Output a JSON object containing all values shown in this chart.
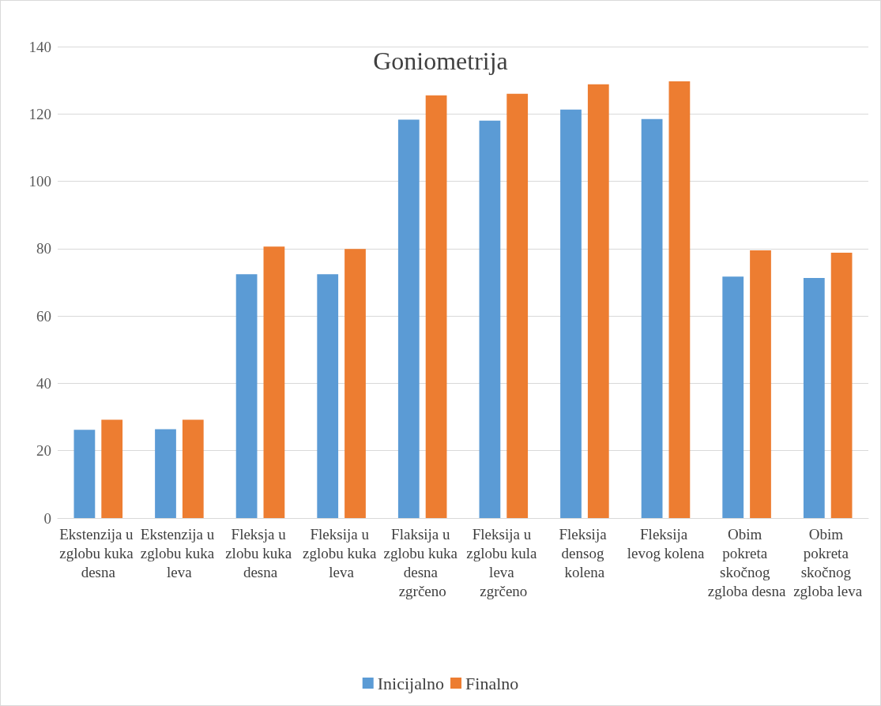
{
  "chart_data": {
    "type": "bar",
    "title": "Goniometrija",
    "categories": [
      "Ekstenzija u zglobu kuka desna",
      "Ekstenzija u zglobu kuka leva",
      "Fleksja u zlobu kuka desna",
      "Fleksija u zglobu kuka leva",
      "Flaksija u zglobu kuka desna zgrčeno",
      "Fleksija u zglobu kula leva zgrčeno",
      "Fleksija densog kolena",
      "Fleksija levog kolena",
      "Obim pokreta skočnog zgloba desna",
      "Obim pokreta skočnog zgloba leva"
    ],
    "series": [
      {
        "name": "Inicijalno",
        "color": "#5b9bd5",
        "values": [
          26.2,
          26.4,
          72.4,
          72.4,
          118.3,
          118.0,
          121.3,
          118.5,
          71.7,
          71.3
        ]
      },
      {
        "name": "Finalno",
        "color": "#ed7d31",
        "values": [
          29.2,
          29.2,
          80.6,
          79.9,
          125.5,
          126.0,
          128.8,
          129.7,
          79.5,
          78.8
        ]
      }
    ],
    "ylim": [
      0,
      140
    ],
    "yticks": [
      0,
      20,
      40,
      60,
      80,
      100,
      120,
      140
    ],
    "grid": "y",
    "legend": "bottom"
  }
}
